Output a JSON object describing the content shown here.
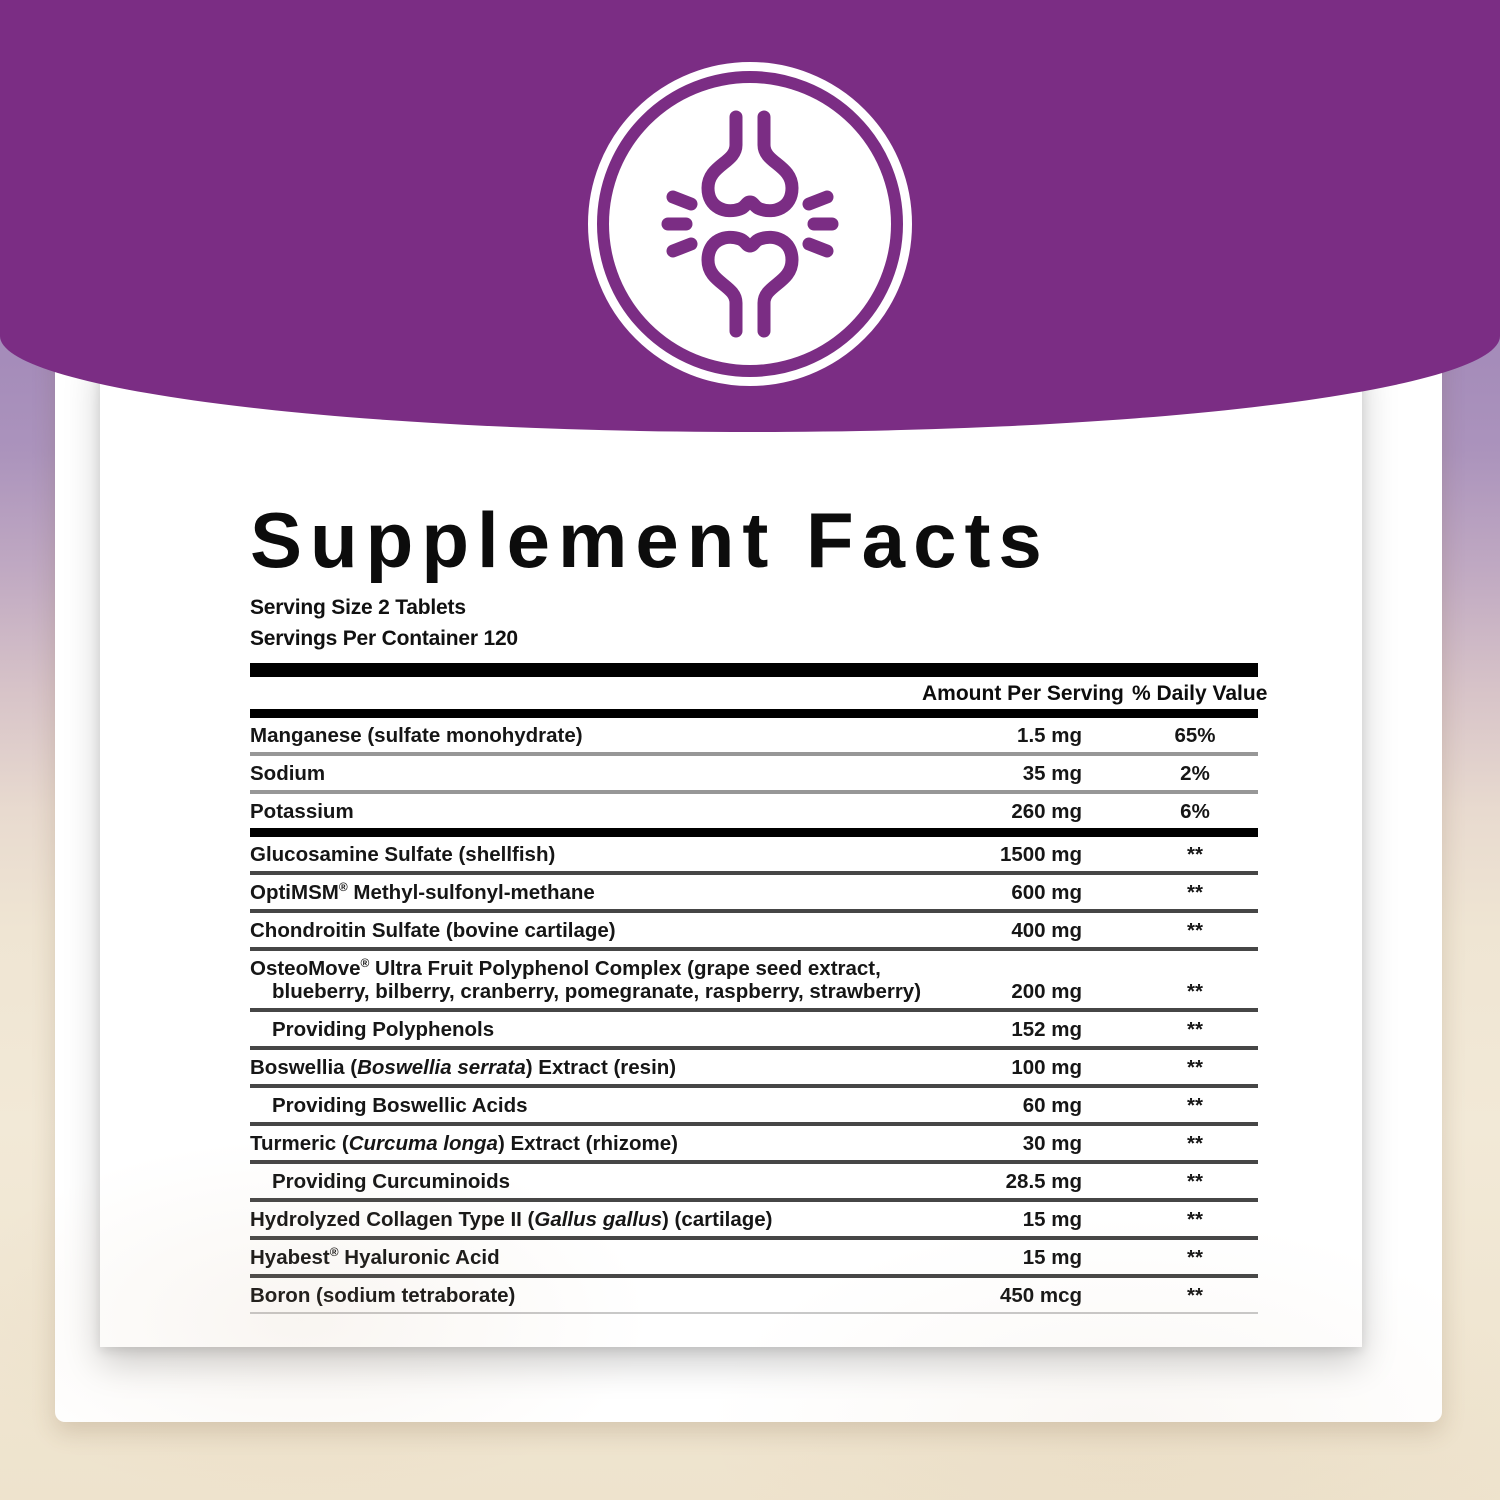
{
  "colors": {
    "purple": "#7b2d84",
    "cream": "#f2e9d7",
    "lavender": "#a58cba",
    "rule_black": "#000000",
    "rule_gray": "#979797",
    "rule_dark": "#464646"
  },
  "banner": {
    "icon": "joint-icon"
  },
  "panel": {
    "title": "Supplement Facts",
    "serving_size": "Serving Size 2 Tablets",
    "servings_per_container": "Servings Per Container 120",
    "columns": {
      "amount": "Amount Per Serving",
      "daily_value": "% Daily Value"
    },
    "daily_value_not_established_symbol": "**",
    "rows": [
      {
        "name": [
          {
            "t": "Manganese (sulfate monohydrate)"
          }
        ],
        "amount": "1.5 mg",
        "dv": "65%",
        "sep": "gray"
      },
      {
        "name": [
          {
            "t": "Sodium"
          }
        ],
        "amount": "35 mg",
        "dv": "2%",
        "sep": "gray"
      },
      {
        "name": [
          {
            "t": "Potassium"
          }
        ],
        "amount": "260 mg",
        "dv": "6%",
        "sep": "thick"
      },
      {
        "name": [
          {
            "t": "Glucosamine Sulfate (shellfish)"
          }
        ],
        "amount": "1500 mg",
        "dv": "**",
        "sep": "dark"
      },
      {
        "name": [
          {
            "t": "OptiMSM"
          },
          {
            "t": "®",
            "sup": true
          },
          {
            "t": " Methyl-sulfonyl-methane"
          }
        ],
        "amount": "600 mg",
        "dv": "**",
        "sep": "dark"
      },
      {
        "name": [
          {
            "t": "Chondroitin Sulfate (bovine cartilage)"
          }
        ],
        "amount": "400 mg",
        "dv": "**",
        "sep": "dark"
      },
      {
        "name": [
          {
            "t": "OsteoMove"
          },
          {
            "t": "®",
            "sup": true
          },
          {
            "t": " Ultra Fruit Polyphenol Complex (grape seed extract,"
          }
        ],
        "name2": [
          {
            "t": "blueberry, bilberry, cranberry, pomegranate, raspberry, strawberry)"
          }
        ],
        "amount": "200 mg",
        "dv": "**",
        "sep": "dark"
      },
      {
        "name": [
          {
            "t": "Providing Polyphenols"
          }
        ],
        "amount": "152 mg",
        "dv": "**",
        "sep": "dark",
        "indent": true
      },
      {
        "name": [
          {
            "t": "Boswellia ("
          },
          {
            "t": "Boswellia serrata",
            "i": true
          },
          {
            "t": ") Extract (resin)"
          }
        ],
        "amount": "100 mg",
        "dv": "**",
        "sep": "dark"
      },
      {
        "name": [
          {
            "t": "Providing Boswellic Acids"
          }
        ],
        "amount": "60 mg",
        "dv": "**",
        "sep": "dark",
        "indent": true
      },
      {
        "name": [
          {
            "t": "Turmeric ("
          },
          {
            "t": "Curcuma longa",
            "i": true
          },
          {
            "t": ") Extract (rhizome)"
          }
        ],
        "amount": "30 mg",
        "dv": "**",
        "sep": "dark"
      },
      {
        "name": [
          {
            "t": "Providing Curcuminoids"
          }
        ],
        "amount": "28.5 mg",
        "dv": "**",
        "sep": "dark",
        "indent": true
      },
      {
        "name": [
          {
            "t": "Hydrolyzed Collagen Type II ("
          },
          {
            "t": "Gallus gallus",
            "i": true
          },
          {
            "t": ") (cartilage)"
          }
        ],
        "amount": "15 mg",
        "dv": "**",
        "sep": "dark"
      },
      {
        "name": [
          {
            "t": "Hyabest"
          },
          {
            "t": "®",
            "sup": true
          },
          {
            "t": " Hyaluronic Acid"
          }
        ],
        "amount": "15 mg",
        "dv": "**",
        "sep": "dark"
      },
      {
        "name": [
          {
            "t": "Boron (sodium tetraborate)"
          }
        ],
        "amount": "450 mcg",
        "dv": "**",
        "sep": "light"
      }
    ]
  }
}
